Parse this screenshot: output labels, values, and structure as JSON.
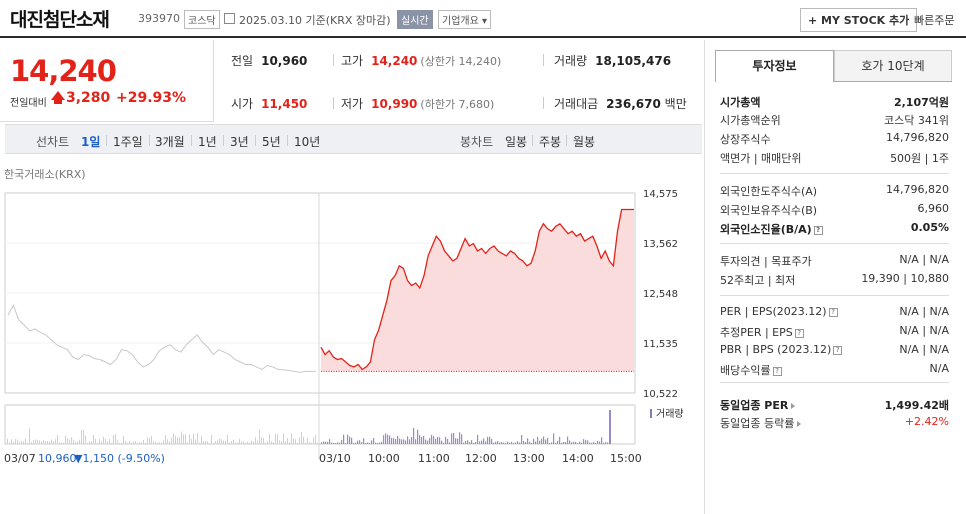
{
  "header": {
    "name": "대진첨단소재",
    "code": "393970",
    "market": "코스닥",
    "date": "2025.03.10",
    "date_suffix": "기준(KRX 장마감)",
    "realtime": "실시간",
    "overview": "기업개요 ▾",
    "mystock": "+ MY STOCK 추가",
    "fastorder": "빠른주문"
  },
  "price": {
    "now": "14,240",
    "change_label": "전일대비",
    "change": "3,280",
    "pct": "+29.93%"
  },
  "stats": {
    "prev_label": "전일",
    "prev": "10,960",
    "high_label": "고가",
    "high": "14,240",
    "high_sub": "(상한가 14,240)",
    "vol_label": "거래량",
    "vol": "18,105,476",
    "open_label": "시가",
    "open": "11,450",
    "low_label": "저가",
    "low": "10,990",
    "low_sub": "(하한가 7,680)",
    "amt_label": "거래대금",
    "amt": "236,670",
    "amt_unit": "백만"
  },
  "periods": {
    "line_label": "선차트",
    "line": [
      "1일",
      "1주일",
      "3개월",
      "1년",
      "3년",
      "5년",
      "10년"
    ],
    "candle_label": "봉차트",
    "candle": [
      "일봉",
      "주봉",
      "월봉"
    ]
  },
  "chart_source": "한국거래소(KRX)",
  "chart_data": {
    "type": "line",
    "ylim": [
      10522,
      14575
    ],
    "yticks": [
      "14,575",
      "13,562",
      "12,548",
      "11,535",
      "10,522"
    ],
    "xticks": [
      "03/07",
      "03/10",
      "10:00",
      "11:00",
      "12:00",
      "13:00",
      "14:00",
      "15:00"
    ],
    "prev_day": [
      12100,
      12300,
      12000,
      11900,
      11780,
      11820,
      11750,
      11700,
      11600,
      11500,
      11450,
      11400,
      11250,
      11200,
      11300,
      11280,
      11220,
      11200,
      11150,
      11100,
      11200,
      11400,
      11380,
      11300,
      11150,
      11050,
      11100,
      11200,
      11380,
      11450,
      11500,
      11400,
      11350,
      11500,
      11600,
      11700,
      11550,
      11450,
      11300,
      11400,
      11350,
      11300,
      11200,
      11150,
      11100,
      11100,
      11050,
      11000,
      11080,
      11050,
      11000,
      10990,
      10980,
      10960,
      10940,
      10960,
      10960,
      10960
    ],
    "today": [
      11450,
      11300,
      11380,
      11250,
      11200,
      11220,
      11150,
      11080,
      11050,
      11100,
      11000,
      11050,
      11150,
      11600,
      11800,
      12100,
      12400,
      12800,
      12900,
      13100,
      13050,
      12800,
      12700,
      12750,
      12650,
      12900,
      13300,
      13500,
      13700,
      13600,
      13400,
      13300,
      13200,
      13250,
      13450,
      13650,
      13500,
      13550,
      13400,
      13450,
      13350,
      13450,
      13500,
      13400,
      13350,
      13300,
      13400,
      13350,
      13250,
      13200,
      13100,
      13150,
      13400,
      13800,
      13950,
      13850,
      13800,
      13900,
      13950,
      13850,
      13750,
      13800,
      13700,
      13750,
      13600,
      13650,
      13700,
      13500,
      13250,
      13400,
      13200,
      13100,
      13800,
      14240,
      14240,
      14240,
      14240
    ],
    "volume_label": "거래량",
    "bottom_prev": "03/07",
    "bottom_prev_close": "10,960",
    "bottom_prev_change": "▼1,150 (-9.50%)"
  },
  "info": {
    "tab1": "투자정보",
    "tab2": "호가 10단계",
    "rows": [
      {
        "k": "시가총액",
        "v": "2,107억원",
        "b": true
      },
      {
        "k": "시가총액순위",
        "v": "코스닥 341위"
      },
      {
        "k": "상장주식수",
        "v": "14,796,820"
      },
      {
        "k": "액면가 | 매매단위",
        "v": "500원 | 1주"
      },
      {
        "k": "외국인한도주식수(A)",
        "v": "14,796,820"
      },
      {
        "k": "외국인보유주식수(B)",
        "v": "6,960"
      },
      {
        "k": "외국인소진율(B/A)",
        "v": "0.05%",
        "b": true
      },
      {
        "k": "투자의견 | 목표주가",
        "v": "N/A | N/A"
      },
      {
        "k": "52주최고 | 최저",
        "v": "19,390 | 10,880"
      },
      {
        "k": "PER | EPS(2023.12)",
        "v": "N/A | N/A"
      },
      {
        "k": "추정PER | EPS",
        "v": "N/A | N/A"
      },
      {
        "k": "PBR | BPS (2023.12)",
        "v": "N/A | N/A"
      },
      {
        "k": "배당수익률",
        "v": "N/A"
      },
      {
        "k": "동일업종 PER",
        "v": "1,499.42배",
        "b": true
      },
      {
        "k": "동일업종 등락률",
        "v": "+2.42%"
      }
    ]
  }
}
